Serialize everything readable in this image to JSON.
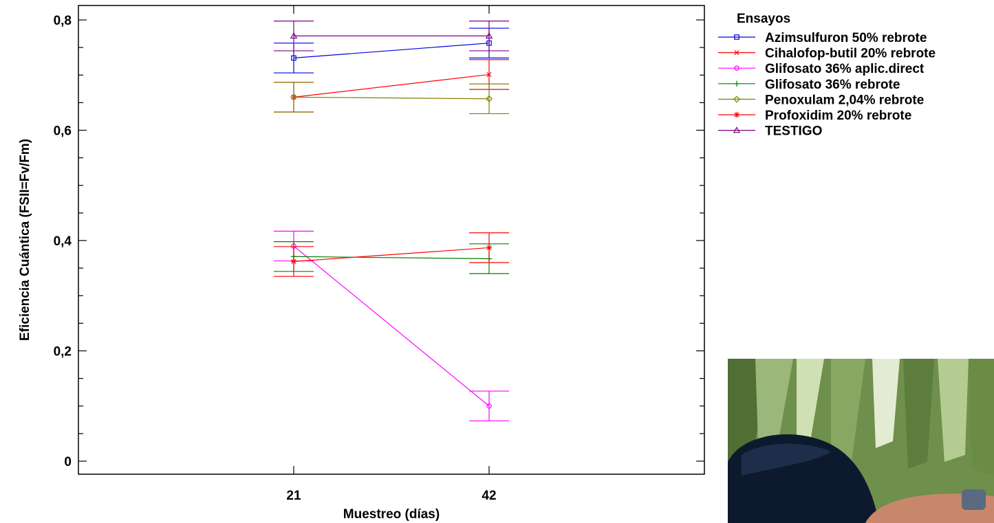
{
  "chart_data": {
    "type": "line",
    "xlabel": "Muestreo (días)",
    "ylabel": "Eficiencia Cuántica (FSII=Fv/Fm)",
    "categories": [
      "21",
      "42"
    ],
    "ylim": [
      0,
      0.8
    ],
    "yticks": [
      "0",
      "0,2",
      "0,4",
      "0,6",
      "0,8"
    ],
    "legend_title": "Ensayos",
    "legend_position": "right",
    "grid": false,
    "error_bars": true,
    "series": [
      {
        "name": "Azimsulfuron 50% rebrote",
        "color": "#0000e0",
        "marker": "square",
        "values": [
          0.731,
          0.758
        ],
        "err": [
          0.027,
          0.027
        ]
      },
      {
        "name": "Cihalofop-butil 20% rebrote",
        "color": "#ff0000",
        "marker": "x",
        "values": [
          0.66,
          0.701
        ],
        "err": [
          0.027,
          0.027
        ]
      },
      {
        "name": "Glifosato 36% aplic.direct",
        "color": "#ff00ff",
        "marker": "circle",
        "values": [
          0.39,
          0.1
        ],
        "err": [
          0.027,
          0.027
        ]
      },
      {
        "name": "Glifosato 36% rebrote",
        "color": "#008000",
        "marker": "plus",
        "values": [
          0.371,
          0.367
        ],
        "err": [
          0.027,
          0.027
        ]
      },
      {
        "name": "Penoxulam 2,04% rebrote",
        "color": "#808000",
        "marker": "diamond",
        "values": [
          0.66,
          0.657
        ],
        "err": [
          0.027,
          0.027
        ]
      },
      {
        "name": "Profoxidim 20% rebrote",
        "color": "#ff0000",
        "marker": "star",
        "values": [
          0.362,
          0.387
        ],
        "err": [
          0.027,
          0.027
        ]
      },
      {
        "name": "TESTIGO",
        "color": "#800080",
        "marker": "triangle",
        "values": [
          0.771,
          0.771
        ],
        "err": [
          0.027,
          0.027
        ]
      }
    ]
  },
  "photo": {
    "icon": "field-photo-icon"
  }
}
